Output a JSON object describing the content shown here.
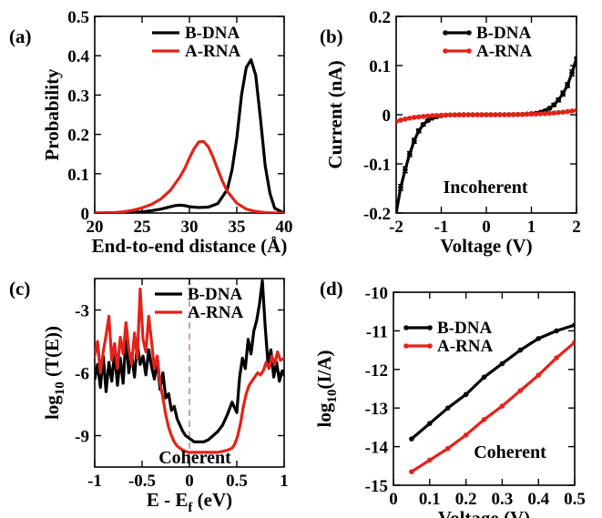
{
  "figure": {
    "panels": [
      "(a)",
      "(b)",
      "(c)",
      "(d)"
    ]
  },
  "chart_data": [
    {
      "id": "a",
      "type": "line",
      "panel_label": "(a)",
      "xlabel": "End-to-end distance (Å)",
      "ylabel": "Probability",
      "xlim": [
        20,
        40
      ],
      "ylim": [
        0,
        0.5
      ],
      "xticks": [
        20,
        25,
        30,
        35,
        40
      ],
      "xtick_labels": [
        "20",
        "25",
        "30",
        "35",
        "40"
      ],
      "yticks": [
        0,
        0.1,
        0.2,
        0.3,
        0.4,
        0.5
      ],
      "ytick_labels": [
        "0",
        "0.1",
        "0.2",
        "0.3",
        "0.4",
        "0.5"
      ],
      "legend_position": "top-right",
      "series": [
        {
          "name": "B-DNA",
          "color": "#000000",
          "x": [
            20,
            22,
            24,
            25,
            26,
            27,
            28,
            28.5,
            29,
            29.5,
            30,
            31,
            32,
            33,
            34,
            34.5,
            35,
            35.5,
            36,
            36.5,
            37,
            37.5,
            38,
            38.5,
            39,
            40
          ],
          "y": [
            0,
            0.0005,
            0.0015,
            0.003,
            0.006,
            0.01,
            0.016,
            0.019,
            0.02,
            0.019,
            0.016,
            0.014,
            0.015,
            0.024,
            0.06,
            0.11,
            0.19,
            0.3,
            0.37,
            0.39,
            0.35,
            0.24,
            0.12,
            0.05,
            0.012,
            0
          ]
        },
        {
          "name": "A-RNA",
          "color": "#e2231a",
          "x": [
            20,
            22,
            23,
            24,
            25,
            26,
            27,
            28,
            29,
            29.5,
            30,
            30.5,
            31,
            31.5,
            32,
            32.5,
            33,
            33.5,
            34,
            35,
            36,
            37,
            38,
            39,
            40
          ],
          "y": [
            0,
            0.001,
            0.003,
            0.007,
            0.013,
            0.022,
            0.036,
            0.058,
            0.092,
            0.113,
            0.14,
            0.164,
            0.181,
            0.182,
            0.168,
            0.142,
            0.11,
            0.08,
            0.055,
            0.025,
            0.01,
            0.004,
            0.001,
            0,
            0
          ]
        }
      ]
    },
    {
      "id": "b",
      "type": "line",
      "panel_label": "(b)",
      "xlabel": "Voltage (V)",
      "ylabel": "Current (nA)",
      "xlim": [
        -2,
        2
      ],
      "ylim": [
        -0.2,
        0.2
      ],
      "xticks": [
        -2,
        -1,
        0,
        1,
        2
      ],
      "xtick_labels": [
        "-2",
        "-1",
        "0",
        "1",
        "2"
      ],
      "yticks": [
        -0.2,
        -0.1,
        0,
        0.1,
        0.2
      ],
      "ytick_labels": [
        "-0.2",
        "-0.1",
        "0",
        "0.1",
        "0.2"
      ],
      "annotation": "Incoherent",
      "legend_position": "top-left",
      "markers": true,
      "error_bars": true,
      "series": [
        {
          "name": "B-DNA",
          "color": "#000000",
          "x": [
            -2,
            -1.9,
            -1.8,
            -1.7,
            -1.6,
            -1.5,
            -1.4,
            -1.3,
            -1.2,
            -1.1,
            -1.0,
            -0.9,
            -0.8,
            -0.7,
            -0.6,
            -0.5,
            -0.4,
            -0.3,
            -0.2,
            -0.1,
            0,
            0.1,
            0.2,
            0.3,
            0.4,
            0.5,
            0.6,
            0.7,
            0.8,
            0.9,
            1.0,
            1.1,
            1.2,
            1.3,
            1.4,
            1.5,
            1.6,
            1.7,
            1.8,
            1.9,
            2.0
          ],
          "y": [
            -0.2,
            -0.148,
            -0.112,
            -0.08,
            -0.053,
            -0.033,
            -0.02,
            -0.012,
            -0.007,
            -0.004,
            -0.002,
            -0.001,
            -0.0006,
            -0.0004,
            -0.0002,
            -0.0001,
            0,
            0,
            0,
            0,
            0,
            0,
            0,
            0,
            0,
            0.0001,
            0.0002,
            0.0004,
            0.0007,
            0.0012,
            0.002,
            0.003,
            0.005,
            0.008,
            0.013,
            0.02,
            0.03,
            0.043,
            0.06,
            0.085,
            0.115
          ],
          "err": [
            0,
            0.006,
            0.006,
            0.005,
            0.005,
            0.004,
            0.003,
            0.002,
            0.001,
            0,
            0,
            0,
            0,
            0,
            0,
            0,
            0,
            0,
            0,
            0,
            0,
            0,
            0,
            0,
            0,
            0,
            0,
            0,
            0,
            0,
            0,
            0,
            0.001,
            0.002,
            0.002,
            0.003,
            0.004,
            0.005,
            0.005,
            0.006,
            0
          ]
        },
        {
          "name": "A-RNA",
          "color": "#e2231a",
          "x": [
            -2,
            -1.9,
            -1.8,
            -1.7,
            -1.6,
            -1.5,
            -1.4,
            -1.3,
            -1.2,
            -1.1,
            -1.0,
            -0.9,
            -0.8,
            -0.7,
            -0.6,
            -0.5,
            -0.4,
            -0.3,
            -0.2,
            -0.1,
            0,
            0.1,
            0.2,
            0.3,
            0.4,
            0.5,
            0.6,
            0.7,
            0.8,
            0.9,
            1.0,
            1.1,
            1.2,
            1.3,
            1.4,
            1.5,
            1.6,
            1.7,
            1.8,
            1.9,
            2.0
          ],
          "y": [
            -0.014,
            -0.011,
            -0.009,
            -0.007,
            -0.0055,
            -0.0045,
            -0.0035,
            -0.0027,
            -0.002,
            -0.0015,
            -0.001,
            -0.0008,
            -0.0006,
            -0.0004,
            -0.0003,
            -0.0002,
            -0.0001,
            -0.0001,
            0,
            0,
            0,
            0,
            0,
            0.0001,
            0.0001,
            0.0002,
            0.0003,
            0.0004,
            0.0006,
            0.0008,
            0.001,
            0.0013,
            0.0017,
            0.0022,
            0.0028,
            0.0035,
            0.0043,
            0.0052,
            0.0063,
            0.0075,
            0.009
          ],
          "err": []
        }
      ]
    },
    {
      "id": "c",
      "type": "line",
      "panel_label": "(c)",
      "xlabel": "E - E_f (eV)",
      "xlabel_main": "E - E",
      "xlabel_sub": "f",
      "xlabel_unit": " (eV)",
      "ylabel_main": "log",
      "ylabel_sub": "10",
      "ylabel_unit": " (T(E))",
      "xlim": [
        -1,
        1
      ],
      "ylim": [
        -10.5,
        -1.5
      ],
      "xticks": [
        -1,
        -0.5,
        0,
        0.5,
        1
      ],
      "xtick_labels": [
        "-1",
        "-0.5",
        "0",
        "0.5",
        "1"
      ],
      "yticks": [
        -3,
        -6,
        -9
      ],
      "ytick_labels": [
        "-3",
        "-6",
        "-9"
      ],
      "annotation": "Coherent",
      "fermi_line_color": "#c9a2a8",
      "legend_position": "top-right",
      "series": [
        {
          "name": "B-DNA",
          "color": "#000000",
          "x": [
            -1,
            -0.97,
            -0.94,
            -0.91,
            -0.88,
            -0.85,
            -0.82,
            -0.79,
            -0.76,
            -0.73,
            -0.7,
            -0.67,
            -0.64,
            -0.61,
            -0.58,
            -0.55,
            -0.52,
            -0.49,
            -0.46,
            -0.43,
            -0.4,
            -0.37,
            -0.34,
            -0.31,
            -0.28,
            -0.25,
            -0.22,
            -0.19,
            -0.16,
            -0.13,
            -0.1,
            -0.07,
            -0.04,
            -0.01,
            0.02,
            0.05,
            0.1,
            0.15,
            0.2,
            0.25,
            0.3,
            0.35,
            0.4,
            0.45,
            0.5,
            0.53,
            0.56,
            0.59,
            0.62,
            0.65,
            0.68,
            0.71,
            0.74,
            0.77,
            0.8,
            0.83,
            0.86,
            0.89,
            0.92,
            0.95,
            0.98,
            1.0
          ],
          "y": [
            -6.3,
            -5.6,
            -6.7,
            -5.2,
            -6.9,
            -5.5,
            -6.4,
            -5.0,
            -6.6,
            -5.3,
            -6.5,
            -4.3,
            -6.0,
            -5.1,
            -6.2,
            -4.6,
            -5.6,
            -5.2,
            -6.1,
            -4.9,
            -5.7,
            -6.3,
            -5.4,
            -6.8,
            -6.0,
            -7.2,
            -7.0,
            -7.8,
            -7.6,
            -8.2,
            -8.5,
            -8.8,
            -9.0,
            -9.1,
            -9.2,
            -9.3,
            -9.3,
            -9.3,
            -9.2,
            -9.0,
            -8.8,
            -8.5,
            -8.0,
            -7.4,
            -7.9,
            -6.2,
            -5.3,
            -5.8,
            -4.4,
            -5.1,
            -4.0,
            -3.5,
            -2.7,
            -1.6,
            -3.8,
            -5.6,
            -4.9,
            -6.2,
            -5.5,
            -6.4,
            -5.9,
            -6.1
          ]
        },
        {
          "name": "A-RNA",
          "color": "#e2231a",
          "x": [
            -1,
            -0.97,
            -0.94,
            -0.91,
            -0.88,
            -0.85,
            -0.82,
            -0.79,
            -0.76,
            -0.73,
            -0.7,
            -0.67,
            -0.64,
            -0.61,
            -0.58,
            -0.55,
            -0.52,
            -0.49,
            -0.46,
            -0.43,
            -0.4,
            -0.37,
            -0.34,
            -0.31,
            -0.28,
            -0.25,
            -0.22,
            -0.19,
            -0.16,
            -0.13,
            -0.1,
            -0.07,
            -0.04,
            -0.01,
            0.05,
            0.1,
            0.2,
            0.3,
            0.35,
            0.4,
            0.45,
            0.48,
            0.51,
            0.54,
            0.57,
            0.6,
            0.63,
            0.66,
            0.69,
            0.72,
            0.75,
            0.78,
            0.81,
            0.84,
            0.87,
            0.9,
            0.93,
            0.96,
            1.0
          ],
          "y": [
            -5.2,
            -4.5,
            -6.0,
            -5.0,
            -4.2,
            -3.3,
            -5.4,
            -4.6,
            -5.8,
            -4.3,
            -5.1,
            -3.6,
            -4.9,
            -5.6,
            -4.1,
            -5.3,
            -2.0,
            -4.4,
            -5.0,
            -3.3,
            -4.5,
            -5.8,
            -5.2,
            -6.5,
            -7.2,
            -8.0,
            -8.6,
            -9.0,
            -9.3,
            -9.5,
            -9.6,
            -9.7,
            -9.75,
            -9.8,
            -9.8,
            -9.8,
            -9.8,
            -9.8,
            -9.75,
            -9.7,
            -9.6,
            -9.4,
            -9.0,
            -8.4,
            -7.6,
            -7.0,
            -6.6,
            -6.4,
            -6.2,
            -6.0,
            -6.1,
            -5.9,
            -5.5,
            -5.8,
            -5.2,
            -5.6,
            -5.0,
            -5.4,
            -5.3
          ]
        }
      ]
    },
    {
      "id": "d",
      "type": "line",
      "panel_label": "(d)",
      "xlabel": "Voltage (V)",
      "ylabel_main": "log",
      "ylabel_sub": "10",
      "ylabel_unit": "(I/A)",
      "xlim": [
        0,
        0.5
      ],
      "ylim": [
        -15,
        -10
      ],
      "xticks": [
        0,
        0.1,
        0.2,
        0.3,
        0.4,
        0.5
      ],
      "xtick_labels": [
        "0",
        "0.1",
        "0.2",
        "0.3",
        "0.4",
        "0.5"
      ],
      "yticks": [
        -15,
        -14,
        -13,
        -12,
        -11,
        -10
      ],
      "ytick_labels": [
        "-15",
        "-14",
        "-13",
        "-12",
        "-11",
        "-10"
      ],
      "annotation": "Coherent",
      "legend_position": "top-left",
      "markers": true,
      "series": [
        {
          "name": "B-DNA",
          "color": "#000000",
          "x": [
            0.05,
            0.1,
            0.15,
            0.2,
            0.25,
            0.3,
            0.35,
            0.4,
            0.45,
            0.5
          ],
          "y": [
            -13.8,
            -13.4,
            -13.0,
            -12.65,
            -12.2,
            -11.85,
            -11.5,
            -11.2,
            -11.0,
            -10.85
          ]
        },
        {
          "name": "A-RNA",
          "color": "#e2231a",
          "x": [
            0.05,
            0.1,
            0.15,
            0.2,
            0.25,
            0.3,
            0.35,
            0.4,
            0.45,
            0.5
          ],
          "y": [
            -14.65,
            -14.35,
            -14.05,
            -13.7,
            -13.3,
            -12.95,
            -12.55,
            -12.15,
            -11.7,
            -11.3
          ]
        }
      ]
    }
  ]
}
